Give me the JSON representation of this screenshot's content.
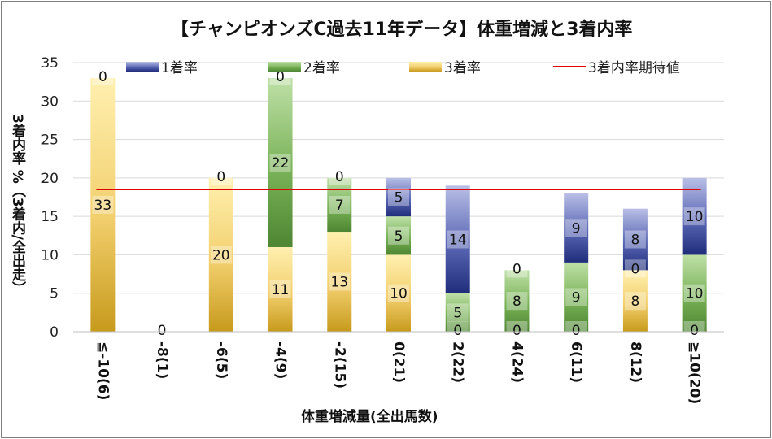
{
  "chart_data": {
    "type": "bar",
    "stacked": true,
    "title": "【チャンピオンズC過去11年データ】体重増減と3着内率",
    "xlabel": "体重増減量(全出馬数)",
    "ylabel": "3着内率 %（3着内/全出走）",
    "ylim": [
      0,
      35
    ],
    "yticks": [
      0,
      5,
      10,
      15,
      20,
      25,
      30,
      35
    ],
    "categories": [
      "≦-10(6)",
      "-8(1)",
      "-6(5)",
      "-4(9)",
      "-2(15)",
      "0(21)",
      "2(22)",
      "4(24)",
      "6(11)",
      "8(12)",
      "≧10(20)"
    ],
    "series": [
      {
        "name": "3着率",
        "color": "#e4b84a",
        "values": [
          33,
          0,
          20,
          11,
          13,
          10,
          0,
          0,
          0,
          8,
          0
        ]
      },
      {
        "name": "2着率",
        "color": "#5e9a3e",
        "values": [
          0,
          0,
          0,
          22,
          7,
          5,
          5,
          8,
          9,
          0,
          10
        ]
      },
      {
        "name": "1着率",
        "color": "#3a4b95",
        "values": [
          0,
          0,
          0,
          0,
          0,
          5,
          14,
          0,
          9,
          8,
          10
        ]
      }
    ],
    "labels": [
      [
        33,
        null,
        0
      ],
      [
        0,
        null,
        null
      ],
      [
        20,
        null,
        0
      ],
      [
        11,
        22,
        0
      ],
      [
        13,
        7,
        0
      ],
      [
        10,
        5,
        5
      ],
      [
        0,
        5,
        14
      ],
      [
        0,
        8,
        0
      ],
      [
        0,
        9,
        9
      ],
      [
        8,
        0,
        8
      ],
      [
        0,
        10,
        10
      ]
    ],
    "reference_line": {
      "name": "3着内率期待値",
      "value": 18.5,
      "color": "#e00000"
    },
    "legend": [
      "1着率",
      "2着率",
      "3着率",
      "3着内率期待値"
    ],
    "grid": true,
    "legend_position": "top"
  }
}
